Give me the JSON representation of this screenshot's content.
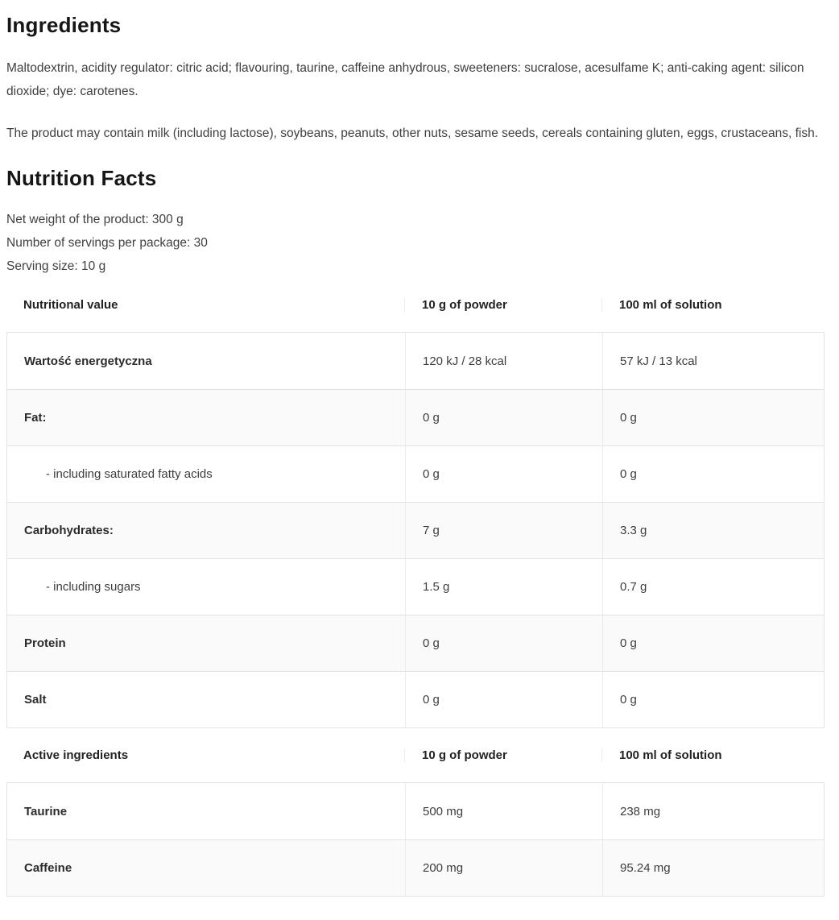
{
  "ingredients": {
    "heading": "Ingredients",
    "composition": "Maltodextrin, acidity regulator: citric acid; flavouring, taurine, caffeine anhydrous, sweeteners: sucralose, acesulfame K; anti-caking agent: silicon dioxide; dye: carotenes.",
    "allergens": "The product may contain milk (including lactose), soybeans, peanuts, other nuts, sesame seeds, cereals containing gluten, eggs, crustaceans, fish."
  },
  "nutrition": {
    "heading": "Nutrition Facts",
    "specs": [
      "Net weight of the product: 300 g",
      "Number of servings per package: 30",
      "Serving size: 10 g"
    ],
    "nutrition_table": {
      "header": [
        "Nutritional value",
        "10 g of powder",
        "100 ml of solution"
      ],
      "rows": [
        {
          "label": "Wartość energetyczna",
          "bold": true,
          "indent": false,
          "powder": "120 kJ / 28 kcal",
          "solution": "57 kJ / 13 kcal"
        },
        {
          "label": "Fat:",
          "bold": true,
          "indent": false,
          "powder": "0 g",
          "solution": "0 g"
        },
        {
          "label": "- including saturated fatty acids",
          "bold": false,
          "indent": true,
          "powder": "0 g",
          "solution": "0 g"
        },
        {
          "label": "Carbohydrates:",
          "bold": true,
          "indent": false,
          "powder": "7 g",
          "solution": "3.3 g"
        },
        {
          "label": "- including sugars",
          "bold": false,
          "indent": true,
          "powder": "1.5 g",
          "solution": "0.7 g"
        },
        {
          "label": "Protein",
          "bold": true,
          "indent": false,
          "powder": "0 g",
          "solution": "0 g"
        },
        {
          "label": "Salt",
          "bold": true,
          "indent": false,
          "powder": "0 g",
          "solution": "0 g"
        }
      ]
    },
    "active_table": {
      "header": [
        "Active ingredients",
        "10 g of powder",
        "100 ml of solution"
      ],
      "rows": [
        {
          "label": "Taurine",
          "bold": true,
          "indent": false,
          "powder": "500 mg",
          "solution": "238 mg"
        },
        {
          "label": "Caffeine",
          "bold": true,
          "indent": false,
          "powder": "200 mg",
          "solution": "95.24 mg"
        }
      ]
    }
  },
  "colors": {
    "heading_text": "#161616",
    "body_text": "#3f3f3f",
    "table_border": "#e3e3e3",
    "row_stripe": "#fafafa"
  }
}
